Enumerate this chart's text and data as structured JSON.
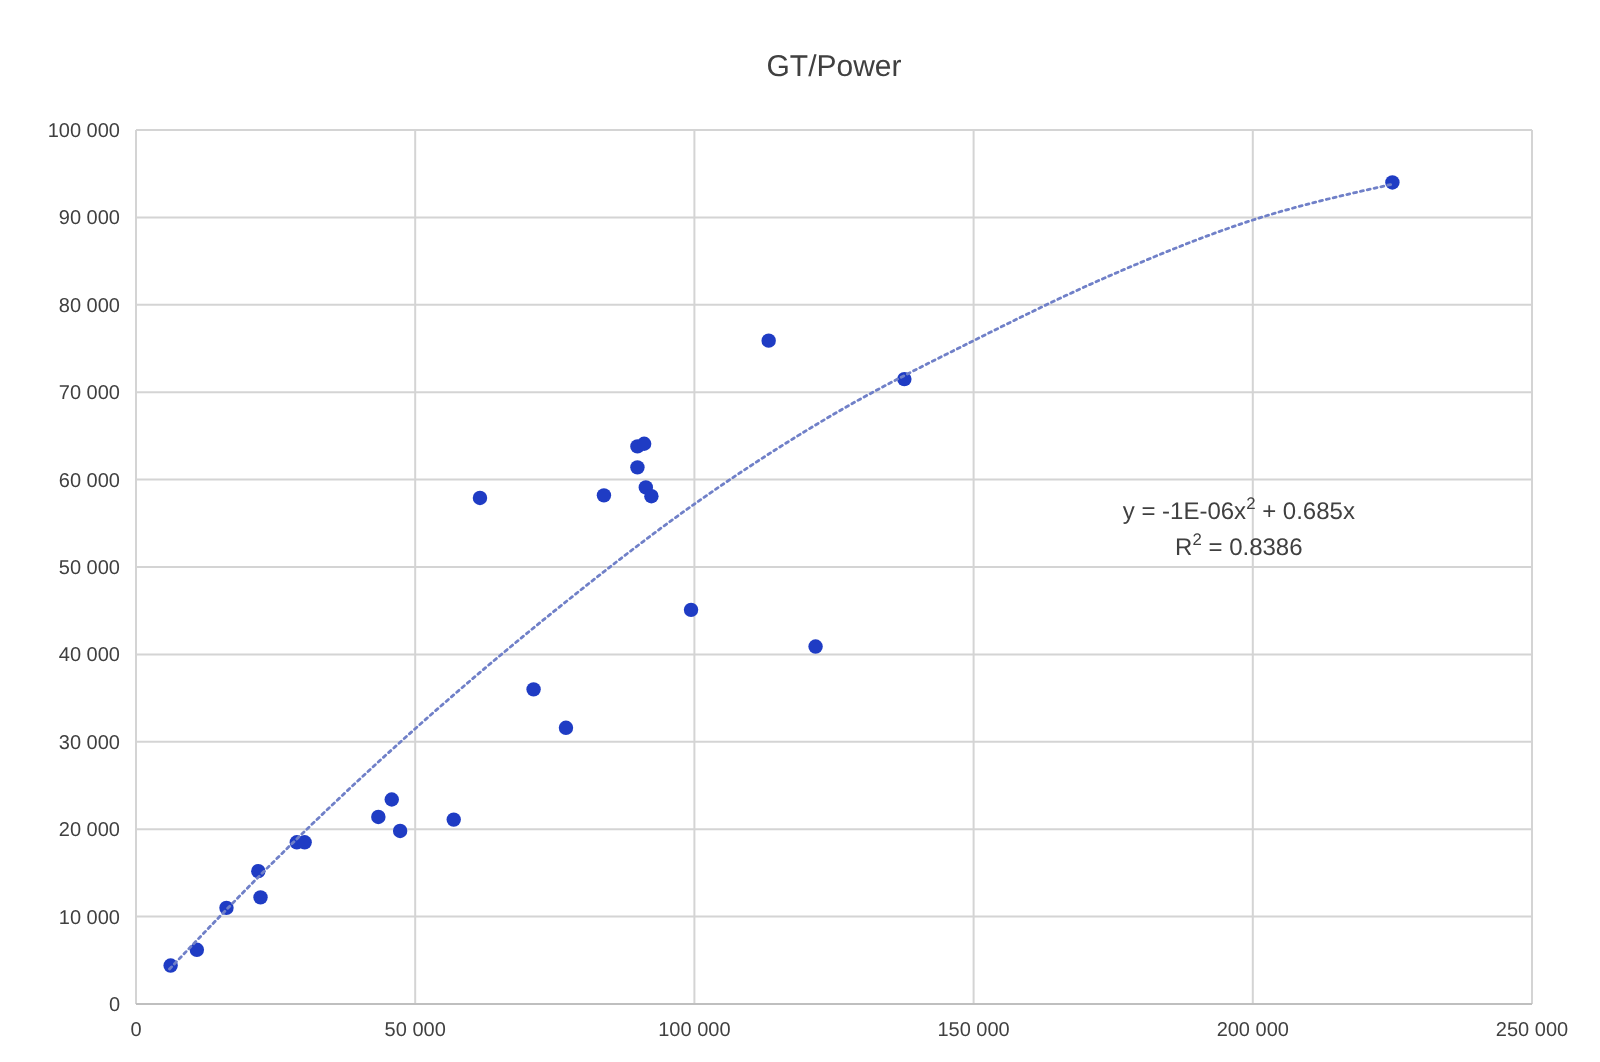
{
  "chart_data": {
    "type": "scatter",
    "title": "GT/Power",
    "xlim": [
      0,
      250000
    ],
    "xticks": [
      0,
      {
        "value": 50000,
        "label": "50 000"
      },
      {
        "value": 100000,
        "label": "100 000"
      },
      {
        "value": 150000,
        "label": "150 000"
      },
      {
        "value": 200000,
        "label": "200 000"
      },
      {
        "value": 250000,
        "label": "250 000"
      }
    ],
    "ylim": [
      0,
      100000
    ],
    "yticks": [
      0,
      {
        "value": 10000,
        "label": "10 000"
      },
      {
        "value": 20000,
        "label": "20 000"
      },
      {
        "value": 30000,
        "label": "30 000"
      },
      {
        "value": 40000,
        "label": "40 000"
      },
      {
        "value": 50000,
        "label": "50 000"
      },
      {
        "value": 60000,
        "label": "60 000"
      },
      {
        "value": 70000,
        "label": "70 000"
      },
      {
        "value": 80000,
        "label": "80 000"
      },
      {
        "value": 90000,
        "label": "90 000"
      },
      {
        "value": 100000,
        "label": "100 000"
      }
    ],
    "grid": true,
    "series": [
      {
        "color": "#1f3cc4",
        "marker": "circle",
        "x": [
          6200,
          10900,
          16200,
          21900,
          22300,
          28800,
          30200,
          43400,
          45800,
          47300,
          56900,
          61600,
          71200,
          77000,
          83800,
          89800,
          89800,
          91000,
          91300,
          92300,
          99400,
          113300,
          137600,
          121700,
          225000
        ],
        "values": [
          4400,
          6200,
          11000,
          15200,
          12200,
          18500,
          18500,
          21400,
          23400,
          19800,
          21100,
          57900,
          36000,
          31600,
          58200,
          61400,
          63800,
          64100,
          59100,
          58100,
          45100,
          75900,
          71500,
          40900,
          94000
        ]
      },
      {
        "type": "line",
        "color": "#7080c8",
        "line_style": "dotted",
        "marker": "none",
        "x": [
          6000,
          25000,
          50000,
          75000,
          100000,
          125000,
          150000,
          175000,
          200000,
          225000
        ],
        "values": [
          4000,
          16500,
          31500,
          45000,
          57200,
          67500,
          75900,
          83500,
          89700,
          93800
        ]
      }
    ],
    "annotations": [
      "y = -1E-06x$^{2}$ + 0.685x",
      "R$^{2}$ = 0.8386"
    ]
  }
}
